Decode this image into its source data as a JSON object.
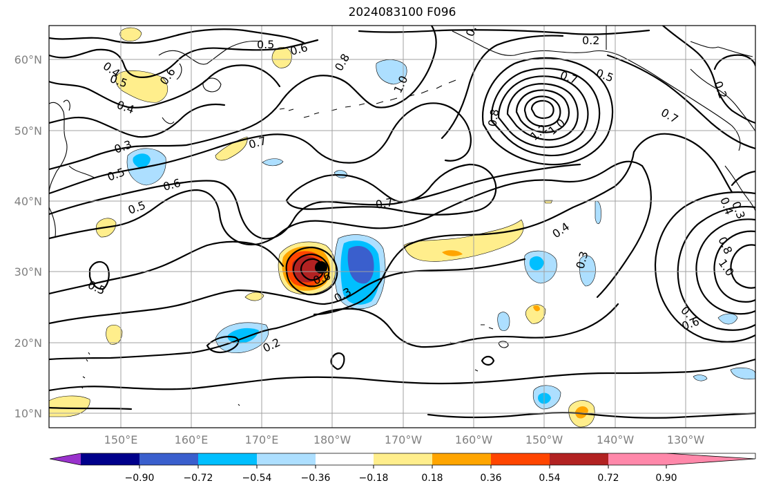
{
  "title": "2024083100 F096",
  "lat_labels": [
    "60°N",
    "50°N",
    "40°N",
    "30°N",
    "20°N",
    "10°N"
  ],
  "lon_labels": [
    "150°E",
    "160°E",
    "170°E",
    "180°W",
    "170°W",
    "160°W",
    "150°W",
    "140°W",
    "130°W"
  ],
  "contour_labels": [
    "0.2",
    "0.4",
    "0.5",
    "0.6",
    "0.6",
    "0.8",
    "1.0",
    "0.4",
    "0.5",
    "0.6",
    "0.3",
    "0.7",
    "0.5",
    "0.6",
    "0.5",
    "0.7",
    "0.4",
    "0.3",
    "0.5",
    "0.6",
    "0.3",
    "0.2",
    "0.7",
    "0.8",
    "1.2",
    "1.0",
    "0.5",
    "0.2",
    "0.7",
    "0.4",
    "0.3",
    "0.8",
    "1.0",
    "0.7",
    "0.6"
  ],
  "colorbar": {
    "colors": [
      "#9932CC",
      "#00008B",
      "#3A5FCD",
      "#00BFFF",
      "#ADDFFF",
      "#FFFFFF",
      "#FFEE8C",
      "#FFA500",
      "#FF4500",
      "#B22222",
      "#FF88AA"
    ],
    "tick_labels": [
      "−0.90",
      "−0.72",
      "−0.54",
      "−0.36",
      "−0.18",
      "0.18",
      "0.36",
      "0.54",
      "0.72",
      "0.90"
    ]
  }
}
